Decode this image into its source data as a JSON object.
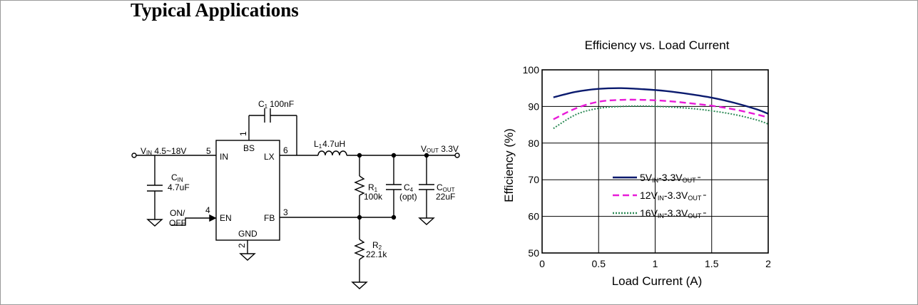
{
  "page": {
    "title": "Typical Applications"
  },
  "schematic": {
    "vin_label": "VIN 4.5~18V",
    "vin": {
      "main": "V",
      "sub": "IN",
      "rest": " 4.5~18V"
    },
    "vout": {
      "main": "V",
      "sub": "OUT",
      "rest": " 3.3V"
    },
    "ic": {
      "pins": [
        {
          "number": "5",
          "name": "IN"
        },
        {
          "number": "1",
          "name": "BS"
        },
        {
          "number": "6",
          "name": "LX"
        },
        {
          "number": "4",
          "name": "EN"
        },
        {
          "number": "3",
          "name": "FB"
        },
        {
          "number": "2",
          "name": "GND"
        }
      ]
    },
    "c1": {
      "main": "C",
      "sub": "1",
      "value": "100nF"
    },
    "l1": {
      "main": "L",
      "sub": "1",
      "value": "4.7uH"
    },
    "cin": {
      "main": "C",
      "sub": "IN",
      "value": "4.7uF"
    },
    "r1": {
      "main": "R",
      "sub": "1",
      "value": "100k"
    },
    "c4": {
      "main": "C",
      "sub": "4",
      "value": "(opt)"
    },
    "cout": {
      "main": "C",
      "sub": "OUT",
      "value": "22uF"
    },
    "r2": {
      "main": "R",
      "sub": "2",
      "value": "22.1k"
    },
    "en_label": {
      "line1": "ON/",
      "line2": "OFF"
    }
  },
  "chart_data": {
    "type": "line",
    "title": "Efficiency vs. Load Current",
    "xlabel": "Load Current (A)",
    "ylabel": "Efficiency (%)",
    "xlim": [
      0,
      2
    ],
    "ylim": [
      50,
      100
    ],
    "xticks": [
      0,
      0.5,
      1,
      1.5,
      2
    ],
    "xtick_labels": [
      "0",
      "0.5",
      "1",
      "1.5",
      "2"
    ],
    "yticks": [
      50,
      60,
      70,
      80,
      90,
      100
    ],
    "ytick_labels": [
      "50",
      "60",
      "70",
      "80",
      "90",
      "100"
    ],
    "grid": true,
    "legend_position": "bottom-center",
    "series": [
      {
        "name": "5VIN-3.3VOUT",
        "legend": {
          "a": "5V",
          "asub": "IN",
          "b": "-3.3V",
          "bsub": "OUT"
        },
        "color": "#0a1a6e",
        "style": "solid",
        "x": [
          0.1,
          0.3,
          0.5,
          0.7,
          0.9,
          1.1,
          1.3,
          1.5,
          1.7,
          1.9,
          2.0
        ],
        "y": [
          92.5,
          94.0,
          94.8,
          95.0,
          94.7,
          94.2,
          93.4,
          92.4,
          91.0,
          89.2,
          88.0
        ]
      },
      {
        "name": "12VIN-3.3VOUT",
        "legend": {
          "a": "12V",
          "asub": "IN",
          "b": "-3.3V",
          "bsub": "OUT"
        },
        "color": "#e81ad8",
        "style": "dashed",
        "x": [
          0.1,
          0.3,
          0.5,
          0.7,
          0.9,
          1.1,
          1.3,
          1.5,
          1.7,
          1.9,
          2.0
        ],
        "y": [
          86.5,
          89.5,
          91.3,
          91.8,
          91.8,
          91.5,
          90.9,
          90.2,
          89.2,
          87.8,
          87.0
        ]
      },
      {
        "name": "16VIN-3.3VOUT",
        "legend": {
          "a": "16V",
          "asub": "IN",
          "b": "-3.3V",
          "bsub": "OUT"
        },
        "color": "#2e8b57",
        "style": "dotted",
        "x": [
          0.1,
          0.3,
          0.5,
          0.7,
          0.9,
          1.1,
          1.3,
          1.5,
          1.7,
          1.9,
          2.0
        ],
        "y": [
          84.0,
          87.8,
          89.5,
          90.0,
          90.1,
          89.9,
          89.5,
          88.8,
          87.8,
          86.3,
          85.2
        ]
      }
    ]
  }
}
